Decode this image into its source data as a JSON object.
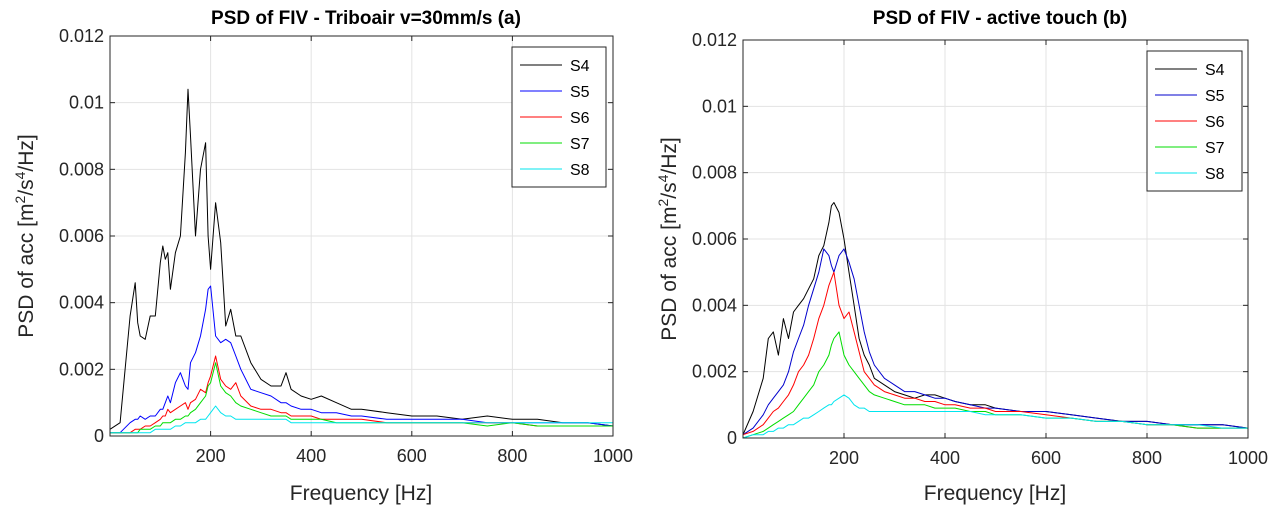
{
  "chart_data": [
    {
      "type": "line",
      "title": "PSD of FIV - Triboair v=30mm/s   (a)",
      "xlabel": "Frequency [Hz]",
      "ylabel_main": "PSD of acc [m",
      "ylabel_sup1": "2",
      "ylabel_mid": "/s",
      "ylabel_sup2": "4",
      "ylabel_end": "/Hz]",
      "xlim": [
        0,
        1000
      ],
      "ylim": [
        0,
        0.012
      ],
      "xticks": [
        200,
        400,
        600,
        800,
        1000
      ],
      "xtick_labels": [
        "200",
        "400",
        "600",
        "800",
        "1000"
      ],
      "yticks": [
        0,
        0.002,
        0.004,
        0.006,
        0.008,
        0.01,
        0.012
      ],
      "ytick_labels": [
        "0",
        "0.002",
        "0.004",
        "0.006",
        "0.008",
        "0.01",
        "0.012"
      ],
      "grid": true,
      "legend_position": "top-right",
      "x": [
        0,
        20,
        40,
        50,
        55,
        60,
        70,
        80,
        90,
        100,
        105,
        110,
        115,
        120,
        130,
        140,
        150,
        155,
        160,
        170,
        180,
        190,
        195,
        200,
        210,
        220,
        230,
        240,
        250,
        260,
        280,
        300,
        320,
        340,
        350,
        360,
        380,
        400,
        420,
        450,
        480,
        500,
        550,
        600,
        650,
        700,
        750,
        800,
        850,
        900,
        950,
        1000
      ],
      "series": [
        {
          "name": "S4",
          "color": "#000000",
          "values": [
            0.0002,
            0.0004,
            0.0036,
            0.0046,
            0.0034,
            0.003,
            0.0029,
            0.0036,
            0.0036,
            0.0052,
            0.0057,
            0.0053,
            0.0055,
            0.0044,
            0.0055,
            0.006,
            0.0085,
            0.0104,
            0.009,
            0.006,
            0.008,
            0.0088,
            0.006,
            0.005,
            0.007,
            0.0058,
            0.0033,
            0.0038,
            0.003,
            0.003,
            0.0022,
            0.0017,
            0.0015,
            0.0015,
            0.0019,
            0.0014,
            0.0012,
            0.0011,
            0.0012,
            0.001,
            0.0008,
            0.0008,
            0.0007,
            0.0006,
            0.0006,
            0.0005,
            0.0006,
            0.0005,
            0.0005,
            0.0004,
            0.0004,
            0.0003
          ]
        },
        {
          "name": "S5",
          "color": "#0000ff",
          "values": [
            0.0001,
            0.0001,
            0.0004,
            0.0005,
            0.0005,
            0.0006,
            0.0005,
            0.0006,
            0.0006,
            0.0008,
            0.0008,
            0.001,
            0.0012,
            0.001,
            0.0016,
            0.0019,
            0.0015,
            0.0014,
            0.0022,
            0.0025,
            0.003,
            0.0038,
            0.0044,
            0.0045,
            0.003,
            0.0028,
            0.0029,
            0.0028,
            0.0024,
            0.002,
            0.0014,
            0.0013,
            0.0012,
            0.001,
            0.001,
            0.0009,
            0.0008,
            0.0008,
            0.0007,
            0.0007,
            0.0006,
            0.0006,
            0.0005,
            0.0005,
            0.0005,
            0.0005,
            0.0004,
            0.0004,
            0.0004,
            0.0004,
            0.0004,
            0.0003
          ]
        },
        {
          "name": "S6",
          "color": "#ff0000",
          "values": [
            0.0001,
            0.0001,
            0.0001,
            0.0002,
            0.0002,
            0.0002,
            0.0003,
            0.0003,
            0.0004,
            0.0005,
            0.0006,
            0.0006,
            0.0008,
            0.0007,
            0.0008,
            0.0009,
            0.001,
            0.0008,
            0.001,
            0.0011,
            0.0014,
            0.0013,
            0.0016,
            0.0018,
            0.0024,
            0.0017,
            0.0015,
            0.0014,
            0.0016,
            0.0012,
            0.0009,
            0.0008,
            0.0008,
            0.0007,
            0.0007,
            0.0006,
            0.0006,
            0.0006,
            0.0005,
            0.0005,
            0.0005,
            0.0005,
            0.0004,
            0.0004,
            0.0004,
            0.0004,
            0.0004,
            0.0004,
            0.0003,
            0.0003,
            0.0003,
            0.0003
          ]
        },
        {
          "name": "S7",
          "color": "#00dd00",
          "values": [
            0.0001,
            0.0001,
            0.0001,
            0.0001,
            0.0001,
            0.0002,
            0.0002,
            0.0002,
            0.0003,
            0.0003,
            0.0004,
            0.0004,
            0.0004,
            0.0004,
            0.0005,
            0.0005,
            0.0006,
            0.0006,
            0.0007,
            0.0008,
            0.001,
            0.0012,
            0.0015,
            0.0016,
            0.0022,
            0.0015,
            0.0013,
            0.0012,
            0.001,
            0.0009,
            0.0008,
            0.0007,
            0.0006,
            0.0006,
            0.0006,
            0.0005,
            0.0005,
            0.0005,
            0.0005,
            0.0004,
            0.0004,
            0.0004,
            0.0004,
            0.0004,
            0.0004,
            0.0004,
            0.0003,
            0.0004,
            0.0003,
            0.0003,
            0.0003,
            0.0003
          ]
        },
        {
          "name": "S8",
          "color": "#00e5ee",
          "values": [
            0.0001,
            0.0001,
            0.0001,
            0.0001,
            0.0001,
            0.0001,
            0.0001,
            0.0001,
            0.0002,
            0.0002,
            0.0002,
            0.0002,
            0.0002,
            0.0002,
            0.0003,
            0.0003,
            0.0004,
            0.0004,
            0.0004,
            0.0004,
            0.0005,
            0.0005,
            0.0006,
            0.0007,
            0.0009,
            0.0007,
            0.0006,
            0.0006,
            0.0005,
            0.0005,
            0.0005,
            0.0005,
            0.0005,
            0.0005,
            0.0005,
            0.0004,
            0.0004,
            0.0004,
            0.0004,
            0.0004,
            0.0004,
            0.0004,
            0.0004,
            0.0004,
            0.0004,
            0.0004,
            0.0004,
            0.0004,
            0.0004,
            0.0004,
            0.0004,
            0.0004
          ]
        }
      ]
    },
    {
      "type": "line",
      "title": "PSD of FIV - active touch   (b)",
      "xlabel": "Frequency [Hz]",
      "ylabel_main": "PSD of acc [m",
      "ylabel_sup1": "2",
      "ylabel_mid": "/s",
      "ylabel_sup2": "4",
      "ylabel_end": "/Hz]",
      "xlim": [
        0,
        1000
      ],
      "ylim": [
        0,
        0.012
      ],
      "xticks": [
        200,
        400,
        600,
        800,
        1000
      ],
      "xtick_labels": [
        "200",
        "400",
        "600",
        "800",
        "1000"
      ],
      "yticks": [
        0,
        0.002,
        0.004,
        0.006,
        0.008,
        0.01,
        0.012
      ],
      "ytick_labels": [
        "0",
        "0.002",
        "0.004",
        "0.006",
        "0.008",
        "0.01",
        "0.012"
      ],
      "grid": true,
      "legend_position": "top-right",
      "x": [
        0,
        20,
        40,
        50,
        60,
        70,
        80,
        90,
        100,
        110,
        120,
        130,
        140,
        150,
        160,
        170,
        175,
        180,
        190,
        200,
        210,
        220,
        230,
        240,
        250,
        260,
        280,
        300,
        320,
        340,
        360,
        380,
        400,
        420,
        450,
        480,
        500,
        550,
        600,
        650,
        700,
        750,
        800,
        850,
        900,
        950,
        1000
      ],
      "series": [
        {
          "name": "S4",
          "color": "#000000",
          "values": [
            0.0001,
            0.0008,
            0.0018,
            0.003,
            0.0032,
            0.0025,
            0.0036,
            0.003,
            0.0038,
            0.004,
            0.0042,
            0.0045,
            0.0048,
            0.0055,
            0.0058,
            0.0065,
            0.007,
            0.0071,
            0.0068,
            0.006,
            0.005,
            0.004,
            0.003,
            0.0025,
            0.0022,
            0.0018,
            0.0016,
            0.0014,
            0.0013,
            0.0012,
            0.0013,
            0.0013,
            0.0012,
            0.0011,
            0.001,
            0.001,
            0.0009,
            0.0008,
            0.0008,
            0.0007,
            0.0006,
            0.0005,
            0.0005,
            0.0004,
            0.0004,
            0.0004,
            0.0003
          ]
        },
        {
          "name": "S5",
          "color": "#0000cc",
          "values": [
            0.0001,
            0.0003,
            0.0007,
            0.001,
            0.0012,
            0.0014,
            0.0016,
            0.002,
            0.0026,
            0.003,
            0.0034,
            0.004,
            0.0045,
            0.005,
            0.0057,
            0.0055,
            0.0052,
            0.005,
            0.0055,
            0.0057,
            0.0053,
            0.0048,
            0.004,
            0.0032,
            0.0026,
            0.0022,
            0.0018,
            0.0016,
            0.0014,
            0.0014,
            0.0013,
            0.0012,
            0.0012,
            0.0011,
            0.001,
            0.0009,
            0.0009,
            0.0008,
            0.0008,
            0.0007,
            0.0006,
            0.0005,
            0.0005,
            0.0004,
            0.0004,
            0.0004,
            0.0003
          ]
        },
        {
          "name": "S6",
          "color": "#ff0000",
          "values": [
            0.0001,
            0.0002,
            0.0004,
            0.0006,
            0.0008,
            0.0009,
            0.0011,
            0.0013,
            0.0016,
            0.002,
            0.0022,
            0.0025,
            0.003,
            0.0036,
            0.004,
            0.0046,
            0.0048,
            0.005,
            0.004,
            0.0036,
            0.0038,
            0.0032,
            0.0026,
            0.002,
            0.0018,
            0.0016,
            0.0014,
            0.0013,
            0.0012,
            0.0012,
            0.0011,
            0.0011,
            0.001,
            0.001,
            0.0009,
            0.0009,
            0.0008,
            0.0008,
            0.0007,
            0.0006,
            0.0005,
            0.0005,
            0.0004,
            0.0004,
            0.0003,
            0.0003,
            0.0003
          ]
        },
        {
          "name": "S7",
          "color": "#00dd00",
          "values": [
            0.0,
            0.0001,
            0.0002,
            0.0003,
            0.0004,
            0.0005,
            0.0006,
            0.0007,
            0.0008,
            0.001,
            0.0012,
            0.0014,
            0.0016,
            0.002,
            0.0022,
            0.0025,
            0.0028,
            0.003,
            0.0032,
            0.0025,
            0.0022,
            0.002,
            0.0018,
            0.0016,
            0.0014,
            0.0013,
            0.0012,
            0.0011,
            0.001,
            0.001,
            0.001,
            0.0009,
            0.0009,
            0.0009,
            0.0008,
            0.0008,
            0.0007,
            0.0007,
            0.0006,
            0.0006,
            0.0005,
            0.0005,
            0.0004,
            0.0004,
            0.0003,
            0.0003,
            0.0003
          ]
        },
        {
          "name": "S8",
          "color": "#00e5ee",
          "values": [
            0.0,
            0.0001,
            0.0001,
            0.0002,
            0.0002,
            0.0003,
            0.0003,
            0.0004,
            0.0004,
            0.0005,
            0.0006,
            0.0006,
            0.0007,
            0.0008,
            0.0009,
            0.001,
            0.001,
            0.0011,
            0.0012,
            0.0013,
            0.0012,
            0.001,
            0.0009,
            0.0009,
            0.0008,
            0.0008,
            0.0008,
            0.0008,
            0.0008,
            0.0008,
            0.0008,
            0.0008,
            0.0008,
            0.0008,
            0.0008,
            0.0007,
            0.0007,
            0.0007,
            0.0006,
            0.0006,
            0.0005,
            0.0005,
            0.0004,
            0.0004,
            0.0004,
            0.0003,
            0.0003
          ]
        }
      ]
    }
  ]
}
